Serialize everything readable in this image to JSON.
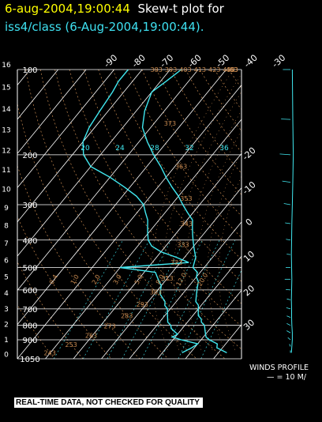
{
  "title": {
    "timestamp": "6-aug-2004,19:00:44",
    "text": "Skew-t plot for",
    "subtitle": "iss4/class (6-Aug-2004,19:00:44)."
  },
  "footer_note": "REAL-TIME DATA, NOT CHECKED FOR QUALITY",
  "winds_profile": {
    "label": "WINDS PROFILE",
    "scale": "— = 10 M/"
  },
  "colors": {
    "background": "#000000",
    "title_date": "#ffff00",
    "title_text": "#ffffff",
    "subtitle": "#3ee0f0",
    "temperature": "#40e8f0",
    "dewpoint": "#40e8f0",
    "isotherm": "#ffffff",
    "isobar": "#ffffff",
    "dry_adiabat": "#c88a50",
    "moist_adiabat": "#c88a50",
    "mixing_ratio": "#40e8f0",
    "wind": "#40e8f0"
  },
  "chart_data": {
    "type": "skew-t",
    "pressure_levels": [
      "100",
      "200",
      "300",
      "400",
      "500",
      "600",
      "700",
      "800",
      "900",
      "1050"
    ],
    "pressure_values": [
      100,
      200,
      300,
      400,
      500,
      600,
      700,
      800,
      900,
      1050
    ],
    "height_ticks_km": [
      "0",
      "1",
      "2",
      "3",
      "4",
      "5",
      "6",
      "7",
      "8",
      "9",
      "10",
      "11",
      "12",
      "13",
      "14",
      "15",
      "16"
    ],
    "height_values_km": [
      0,
      1,
      2,
      3,
      4,
      5,
      6,
      7,
      8,
      9,
      10,
      11,
      12,
      13,
      14,
      15,
      16
    ],
    "isotherm_labels": [
      "-90",
      "-80",
      "-70",
      "-60",
      "-50",
      "-40",
      "-30",
      "-20",
      "-10",
      "0",
      "10",
      "20",
      "30"
    ],
    "isotherms_top_c": [
      -90,
      -80,
      -70,
      -60,
      -50,
      -40,
      -30
    ],
    "isotherms_right_c": [
      -20,
      -10,
      0,
      10,
      20,
      30
    ],
    "dry_adiabat_labels_k": [
      "243",
      "253",
      "263",
      "273",
      "283",
      "293",
      "303",
      "313",
      "323",
      "333",
      "343",
      "353",
      "363",
      "373",
      "383",
      "393",
      "403",
      "413",
      "423",
      "433",
      "443",
      "453",
      "463"
    ],
    "moist_adiabat_labels": [
      "20",
      "24",
      "28",
      "32",
      "36"
    ],
    "mixing_ratio_labels": [
      "0.4",
      "1.0",
      "2.0",
      "3.0",
      "5.0",
      "8.0",
      "12.0",
      "20.0"
    ],
    "temperature_profile": {
      "pressure": [
        1000,
        960,
        930,
        900,
        880,
        860,
        840,
        820,
        800,
        780,
        760,
        740,
        720,
        700,
        680,
        660,
        640,
        620,
        600,
        580,
        560,
        540,
        520,
        500,
        480,
        460,
        440,
        420,
        400,
        380,
        360,
        340,
        320,
        300,
        280,
        260,
        240,
        220,
        200,
        180,
        160,
        140,
        120,
        110,
        100
      ],
      "temp_c": [
        33,
        28,
        27,
        23,
        21,
        20,
        19,
        18,
        17,
        15,
        14,
        12,
        11,
        10,
        9,
        7,
        6,
        5,
        4,
        3,
        2,
        0,
        -1,
        -4,
        -5,
        -6,
        -8,
        -10,
        -12,
        -14,
        -16,
        -18,
        -22,
        -26,
        -30,
        -35,
        -40,
        -45,
        -51,
        -57,
        -63,
        -67,
        -70,
        -68,
        -66
      ]
    },
    "dewpoint_profile": {
      "pressure": [
        1000,
        960,
        930,
        900,
        880,
        860,
        840,
        820,
        800,
        780,
        760,
        740,
        720,
        700,
        680,
        660,
        640,
        620,
        600,
        580,
        560,
        540,
        520,
        500,
        480,
        460,
        440,
        420,
        400,
        380,
        360,
        340,
        320,
        300,
        280,
        260,
        240,
        220,
        200,
        180,
        160,
        140,
        120,
        110,
        100
      ],
      "dewpoint_c": [
        17,
        19,
        20,
        13,
        9,
        10,
        8,
        6,
        5,
        3,
        2,
        1,
        0,
        -1,
        -3,
        -4,
        -6,
        -8,
        -9,
        -10,
        -12,
        -14,
        -16,
        -30,
        -7,
        -13,
        -20,
        -25,
        -28,
        -30,
        -32,
        -34,
        -37,
        -40,
        -45,
        -52,
        -60,
        -70,
        -76,
        -80,
        -82,
        -83,
        -84,
        -85,
        -85
      ]
    },
    "wind_profile": {
      "pressure": [
        1000,
        950,
        900,
        850,
        800,
        750,
        700,
        650,
        600,
        550,
        500,
        450,
        400,
        350,
        300,
        250,
        200,
        150,
        100
      ],
      "speed_ms": [
        4,
        6,
        8,
        8,
        6,
        5,
        5,
        4,
        5,
        6,
        5,
        4,
        5,
        6,
        8,
        10,
        12,
        10,
        8
      ],
      "direction_deg": [
        180,
        190,
        200,
        210,
        220,
        230,
        240,
        250,
        260,
        270,
        270,
        260,
        250,
        250,
        240,
        240,
        250,
        260,
        270
      ]
    },
    "x_range_c": [
      -40,
      40
    ],
    "y_range_hpa": [
      1050,
      100
    ],
    "y_scale": "log",
    "grid": true
  }
}
